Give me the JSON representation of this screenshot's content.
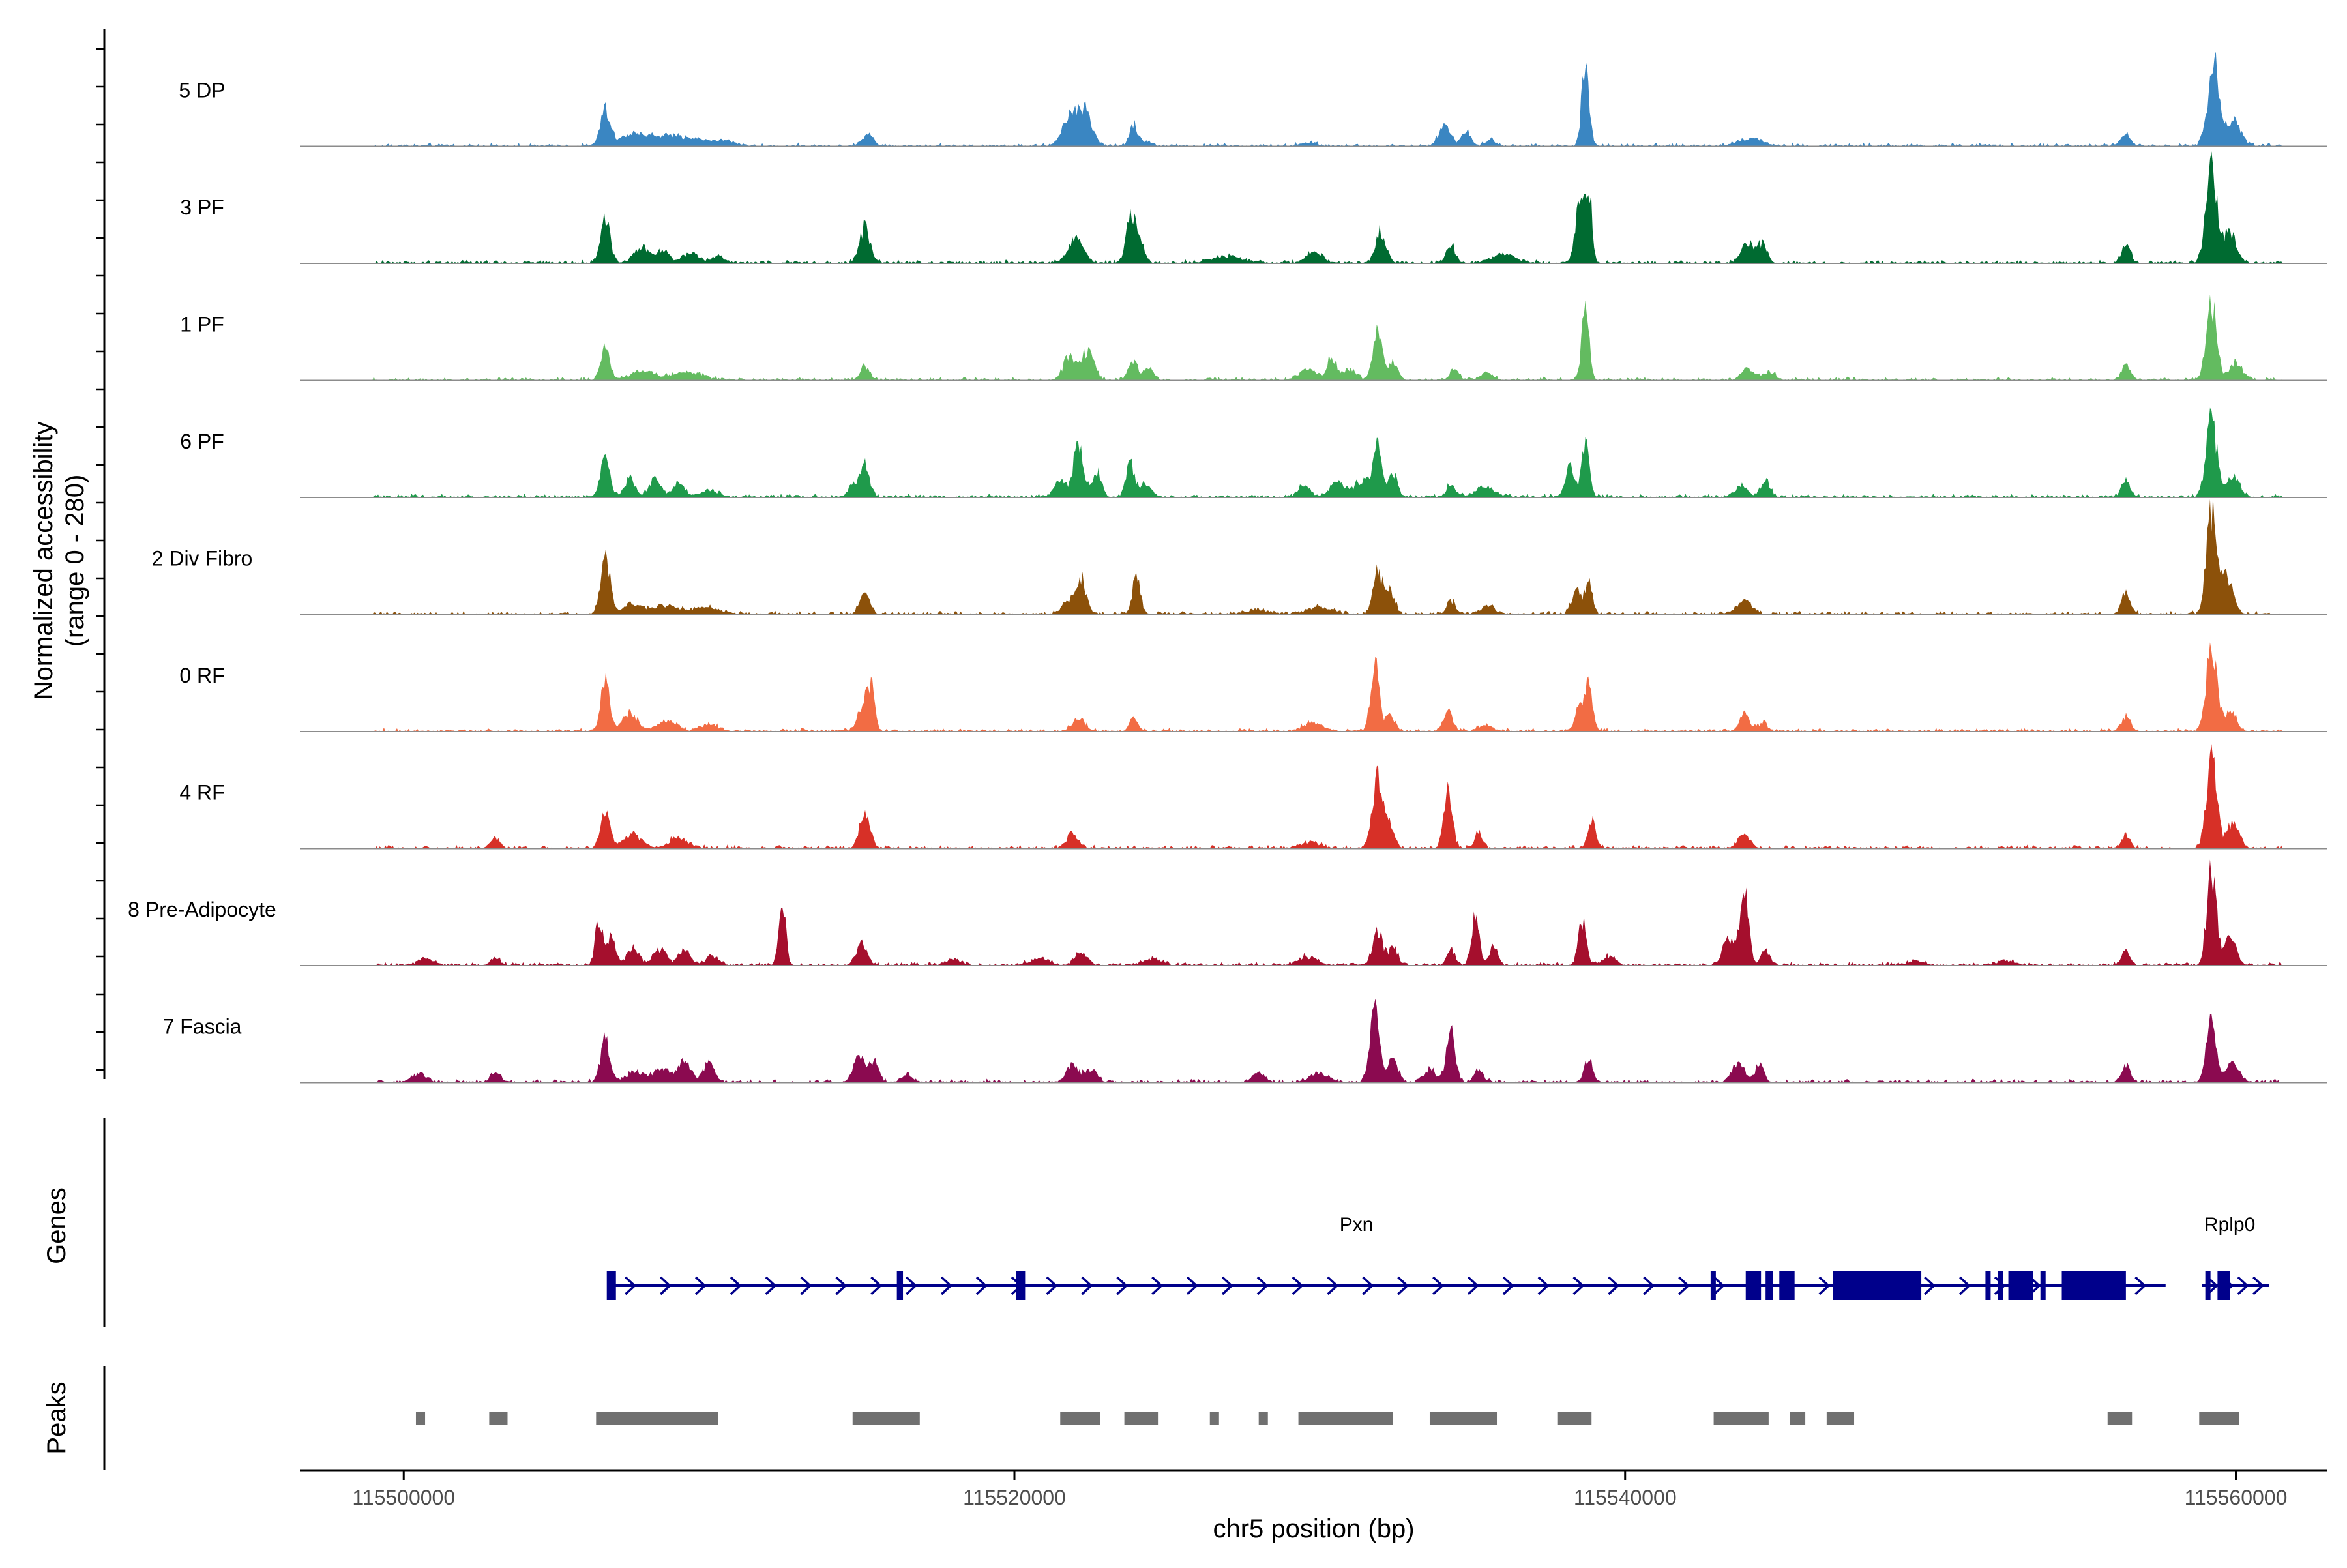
{
  "chart_data": {
    "type": "area",
    "title": "",
    "ylabel": "Normalized accessibility (range 0 - 280)",
    "ylabel_lines": [
      "Normalized accessibility",
      "(range 0 - 280)"
    ],
    "ylim": [
      0,
      280
    ],
    "xlabel": "chr5 position (bp)",
    "xlim": [
      115496600,
      115563000
    ],
    "x_ticks": [
      115500000,
      115520000,
      115540000,
      115560000
    ],
    "x_tick_labels": [
      "115500000",
      "115520000",
      "115540000",
      "115560000"
    ],
    "panel_titles": {
      "genes": "Genes",
      "peaks": "Peaks"
    },
    "series": [
      {
        "name": "5 DP",
        "color": "#3a86c2",
        "peaks": [
          [
            115506600,
            80,
            160
          ],
          [
            115507600,
            26,
            500
          ],
          [
            115509000,
            22,
            700
          ],
          [
            115510500,
            10,
            400
          ],
          [
            115515200,
            30,
            180
          ],
          [
            115522200,
            95,
            280
          ],
          [
            115521700,
            40,
            200
          ],
          [
            115523900,
            48,
            130
          ],
          [
            115524300,
            10,
            200
          ],
          [
            115529600,
            8,
            250
          ],
          [
            115534100,
            45,
            200
          ],
          [
            115534800,
            40,
            140
          ],
          [
            115535600,
            15,
            150
          ],
          [
            115538700,
            195,
            120
          ],
          [
            115544100,
            18,
            400
          ],
          [
            115556400,
            30,
            140
          ],
          [
            115559300,
            205,
            150
          ],
          [
            115559900,
            60,
            250
          ],
          [
            115559000,
            40,
            120
          ]
        ]
      },
      {
        "name": "3 PF",
        "color": "#006b31",
        "peaks": [
          [
            115506600,
            110,
            150
          ],
          [
            115507800,
            35,
            250
          ],
          [
            115508500,
            30,
            200
          ],
          [
            115509400,
            25,
            250
          ],
          [
            115510300,
            15,
            200
          ],
          [
            115515100,
            85,
            170
          ],
          [
            115522000,
            55,
            250
          ],
          [
            115523800,
            105,
            150
          ],
          [
            115524100,
            55,
            150
          ],
          [
            115527000,
            15,
            500
          ],
          [
            115529800,
            25,
            250
          ],
          [
            115532000,
            75,
            170
          ],
          [
            115534300,
            45,
            140
          ],
          [
            115536000,
            20,
            400
          ],
          [
            115538500,
            130,
            140
          ],
          [
            115538800,
            190,
            100
          ],
          [
            115544000,
            50,
            200
          ],
          [
            115544500,
            45,
            150
          ],
          [
            115556400,
            45,
            140
          ],
          [
            115559200,
            225,
            180
          ],
          [
            115559800,
            75,
            200
          ]
        ]
      },
      {
        "name": "1 PF",
        "color": "#63bb60",
        "peaks": [
          [
            115506600,
            80,
            150
          ],
          [
            115507800,
            20,
            400
          ],
          [
            115509300,
            18,
            500
          ],
          [
            115515100,
            35,
            150
          ],
          [
            115521800,
            55,
            200
          ],
          [
            115522400,
            70,
            200
          ],
          [
            115523900,
            45,
            150
          ],
          [
            115524400,
            30,
            150
          ],
          [
            115529600,
            25,
            300
          ],
          [
            115530400,
            55,
            150
          ],
          [
            115531000,
            25,
            200
          ],
          [
            115531900,
            115,
            150
          ],
          [
            115532400,
            40,
            150
          ],
          [
            115534400,
            25,
            150
          ],
          [
            115535500,
            15,
            200
          ],
          [
            115538700,
            165,
            120
          ],
          [
            115544000,
            25,
            200
          ],
          [
            115544700,
            20,
            200
          ],
          [
            115556400,
            40,
            140
          ],
          [
            115559200,
            180,
            170
          ],
          [
            115560000,
            45,
            200
          ]
        ]
      },
      {
        "name": "6 PF",
        "color": "#1f9a4b",
        "peaks": [
          [
            115506600,
            100,
            150
          ],
          [
            115507400,
            50,
            150
          ],
          [
            115508200,
            40,
            200
          ],
          [
            115509000,
            30,
            200
          ],
          [
            115510000,
            15,
            300
          ],
          [
            115515100,
            75,
            150
          ],
          [
            115514700,
            30,
            150
          ],
          [
            115521500,
            40,
            200
          ],
          [
            115522100,
            130,
            160
          ],
          [
            115522700,
            60,
            150
          ],
          [
            115523800,
            80,
            140
          ],
          [
            115524300,
            30,
            150
          ],
          [
            115529500,
            25,
            200
          ],
          [
            115530600,
            35,
            250
          ],
          [
            115531400,
            40,
            250
          ],
          [
            115531900,
            115,
            150
          ],
          [
            115532400,
            50,
            150
          ],
          [
            115534300,
            30,
            150
          ],
          [
            115535400,
            25,
            300
          ],
          [
            115538200,
            70,
            150
          ],
          [
            115538700,
            120,
            120
          ],
          [
            115543800,
            25,
            200
          ],
          [
            115544600,
            40,
            150
          ],
          [
            115556400,
            40,
            140
          ],
          [
            115559200,
            195,
            170
          ],
          [
            115559900,
            50,
            200
          ]
        ]
      },
      {
        "name": "2 Div Fibro",
        "color": "#8c510a",
        "peaks": [
          [
            115506600,
            140,
            150
          ],
          [
            115507500,
            25,
            300
          ],
          [
            115508500,
            20,
            400
          ],
          [
            115509800,
            15,
            500
          ],
          [
            115515100,
            50,
            160
          ],
          [
            115521800,
            35,
            200
          ],
          [
            115522200,
            80,
            150
          ],
          [
            115524000,
            90,
            130
          ],
          [
            115528000,
            10,
            400
          ],
          [
            115530000,
            15,
            400
          ],
          [
            115531900,
            100,
            150
          ],
          [
            115532300,
            55,
            150
          ],
          [
            115534300,
            30,
            150
          ],
          [
            115535500,
            20,
            200
          ],
          [
            115538400,
            55,
            150
          ],
          [
            115538800,
            80,
            120
          ],
          [
            115543900,
            30,
            250
          ],
          [
            115556400,
            55,
            140
          ],
          [
            115559200,
            250,
            160
          ],
          [
            115559700,
            90,
            200
          ]
        ]
      },
      {
        "name": "0 RF",
        "color": "#f26c44",
        "peaks": [
          [
            115506600,
            115,
            150
          ],
          [
            115507400,
            40,
            250
          ],
          [
            115508600,
            25,
            300
          ],
          [
            115510000,
            15,
            300
          ],
          [
            115515000,
            60,
            140
          ],
          [
            115515300,
            110,
            120
          ],
          [
            115522100,
            30,
            200
          ],
          [
            115523900,
            30,
            140
          ],
          [
            115529800,
            20,
            300
          ],
          [
            115531800,
            160,
            140
          ],
          [
            115532300,
            35,
            150
          ],
          [
            115534200,
            50,
            140
          ],
          [
            115535400,
            15,
            200
          ],
          [
            115538500,
            50,
            150
          ],
          [
            115538800,
            105,
            130
          ],
          [
            115543900,
            45,
            150
          ],
          [
            115544500,
            20,
            150
          ],
          [
            115556400,
            35,
            140
          ],
          [
            115559200,
            195,
            170
          ],
          [
            115559800,
            45,
            200
          ]
        ]
      },
      {
        "name": "4 RF",
        "color": "#d73027",
        "peaks": [
          [
            115503000,
            25,
            150
          ],
          [
            115506600,
            90,
            150
          ],
          [
            115507500,
            30,
            300
          ],
          [
            115509000,
            25,
            300
          ],
          [
            115515100,
            90,
            160
          ],
          [
            115521900,
            35,
            200
          ],
          [
            115529700,
            15,
            300
          ],
          [
            115531900,
            165,
            170
          ],
          [
            115532300,
            50,
            150
          ],
          [
            115534200,
            130,
            140
          ],
          [
            115535200,
            40,
            120
          ],
          [
            115538900,
            65,
            130
          ],
          [
            115543900,
            30,
            200
          ],
          [
            115556400,
            30,
            140
          ],
          [
            115559200,
            210,
            170
          ],
          [
            115559900,
            60,
            200
          ]
        ]
      },
      {
        "name": "8 Pre-Adipocyte",
        "color": "#a50f2d",
        "peaks": [
          [
            115500700,
            15,
            250
          ],
          [
            115503000,
            18,
            150
          ],
          [
            115506400,
            110,
            120
          ],
          [
            115506800,
            60,
            150
          ],
          [
            115507500,
            40,
            200
          ],
          [
            115508400,
            40,
            200
          ],
          [
            115509200,
            35,
            200
          ],
          [
            115510100,
            20,
            200
          ],
          [
            115512400,
            145,
            110
          ],
          [
            115515000,
            50,
            180
          ],
          [
            115518000,
            15,
            200
          ],
          [
            115520800,
            15,
            300
          ],
          [
            115522200,
            30,
            200
          ],
          [
            115524500,
            15,
            300
          ],
          [
            115529600,
            20,
            300
          ],
          [
            115531900,
            75,
            160
          ],
          [
            115532400,
            40,
            150
          ],
          [
            115534300,
            35,
            140
          ],
          [
            115535100,
            125,
            130
          ],
          [
            115535700,
            45,
            130
          ],
          [
            115538600,
            100,
            130
          ],
          [
            115539500,
            20,
            200
          ],
          [
            115543400,
            60,
            200
          ],
          [
            115543900,
            165,
            140
          ],
          [
            115544600,
            35,
            150
          ],
          [
            115549500,
            10,
            300
          ],
          [
            115552500,
            10,
            300
          ],
          [
            115556400,
            30,
            140
          ],
          [
            115559200,
            235,
            150
          ],
          [
            115559800,
            70,
            200
          ]
        ]
      },
      {
        "name": "7 Fascia",
        "color": "#8b0a50",
        "peaks": [
          [
            115500500,
            20,
            250
          ],
          [
            115503000,
            25,
            150
          ],
          [
            115506600,
            100,
            150
          ],
          [
            115507600,
            25,
            300
          ],
          [
            115508500,
            35,
            250
          ],
          [
            115509200,
            50,
            200
          ],
          [
            115510000,
            45,
            180
          ],
          [
            115514900,
            70,
            160
          ],
          [
            115515400,
            50,
            150
          ],
          [
            115516500,
            15,
            200
          ],
          [
            115521900,
            40,
            200
          ],
          [
            115522500,
            30,
            200
          ],
          [
            115528000,
            20,
            200
          ],
          [
            115530000,
            20,
            300
          ],
          [
            115531800,
            160,
            160
          ],
          [
            115532400,
            60,
            150
          ],
          [
            115533600,
            30,
            200
          ],
          [
            115534300,
            130,
            140
          ],
          [
            115535200,
            30,
            150
          ],
          [
            115538800,
            60,
            130
          ],
          [
            115543700,
            45,
            200
          ],
          [
            115544400,
            40,
            150
          ],
          [
            115556400,
            40,
            140
          ],
          [
            115559200,
            150,
            160
          ],
          [
            115559900,
            45,
            200
          ]
        ]
      }
    ],
    "genes": [
      {
        "name": "Pxn",
        "strand": "+",
        "start": 115506700,
        "end": 115557700,
        "label_x": 115531200,
        "exons": [
          [
            115506650,
            115506950
          ],
          [
            115516150,
            115516350
          ],
          [
            115520050,
            115520350
          ],
          [
            115542800,
            115542950
          ],
          [
            115543950,
            115544450
          ],
          [
            115544600,
            115544850
          ],
          [
            115545050,
            115545550
          ],
          [
            115546800,
            115549700
          ],
          [
            115551800,
            115551950
          ],
          [
            115552200,
            115552350
          ],
          [
            115552550,
            115553350
          ],
          [
            115553600,
            115553750
          ],
          [
            115554300,
            115556400
          ]
        ]
      },
      {
        "name": "Rplp0",
        "strand": "+",
        "start": 115558900,
        "end": 115561100,
        "label_x": 115559800,
        "exons": [
          [
            115559000,
            115559150
          ],
          [
            115559400,
            115559800
          ]
        ]
      }
    ],
    "peaks_regions": [
      [
        115500400,
        115500700
      ],
      [
        115502800,
        115503400
      ],
      [
        115506300,
        115510300
      ],
      [
        115514700,
        115516900
      ],
      [
        115521500,
        115522800
      ],
      [
        115523600,
        115524700
      ],
      [
        115526400,
        115526700
      ],
      [
        115528000,
        115528300
      ],
      [
        115529300,
        115532400
      ],
      [
        115533600,
        115535800
      ],
      [
        115537800,
        115538900
      ],
      [
        115542900,
        115544700
      ],
      [
        115545400,
        115545900
      ],
      [
        115546600,
        115547500
      ],
      [
        115555800,
        115556600
      ],
      [
        115558800,
        115560100
      ]
    ]
  }
}
